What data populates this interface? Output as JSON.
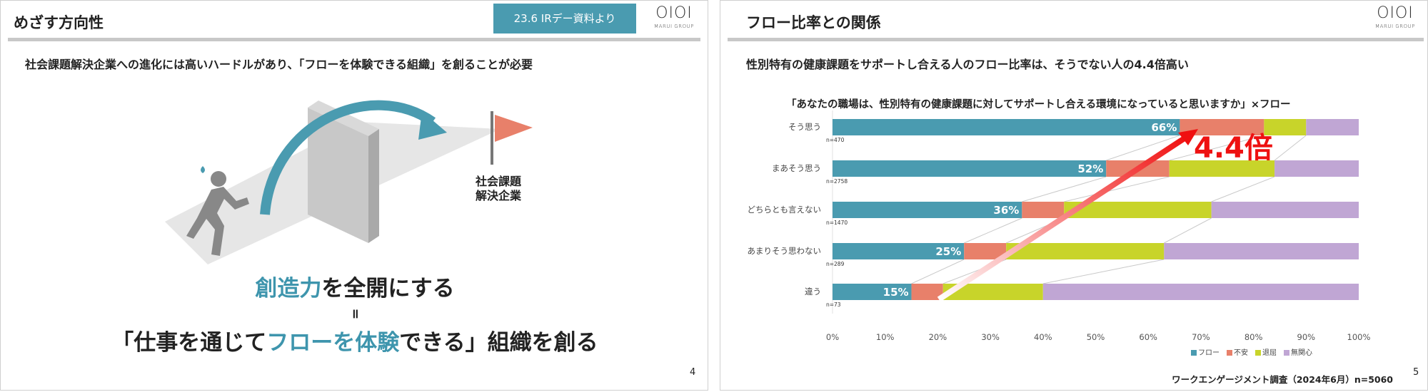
{
  "left": {
    "title": "めざす方向性",
    "badge": "23.6 IRデー資料より",
    "logo": "OIOI",
    "logo_sub": "MARUI GROUP",
    "subtitle": "社会課題解決企業への進化には高いハードルがあり、「フローを体験できる組織」を創ることが必要",
    "goal_line1": "社会課題",
    "goal_line2": "解決企業",
    "line1_accent": "創造力",
    "line1_rest": "を全開にする",
    "equals": "॥",
    "line3_a": "「仕事を通じて",
    "line3_accent": "フローを体験",
    "line3_b": "できる」組織を創る",
    "page_number": "4"
  },
  "right": {
    "title": "フロー比率との関係",
    "logo": "OIOI",
    "logo_sub": "MARUI GROUP",
    "subtitle": "性別特有の健康課題をサポートし合える人のフロー比率は、そうでない人の4.4倍高い",
    "callout": "4.4倍",
    "source": "ワークエンゲージメント調査（2024年6月）n=5060",
    "page_number": "5"
  },
  "chart_data": {
    "type": "bar",
    "stacked": true,
    "orientation": "horizontal",
    "title": "「あなたの職場は、性別特有の健康課題に対してサポートし合える環境になっていると思いますか」×フロー",
    "categories": [
      "そう思う",
      "まあそう思う",
      "どちらとも言えない",
      "あまりそう思わない",
      "違う"
    ],
    "n_labels": [
      "n=470",
      "n=2758",
      "n=1470",
      "n=289",
      "n=73"
    ],
    "series": [
      {
        "name": "フロー",
        "color": "#4a9bb0",
        "values": [
          66,
          52,
          36,
          25,
          15
        ]
      },
      {
        "name": "不安",
        "color": "#e8806a",
        "values": [
          16,
          12,
          8,
          8,
          6
        ]
      },
      {
        "name": "退屈",
        "color": "#c8d42a",
        "values": [
          8,
          20,
          28,
          30,
          19
        ]
      },
      {
        "name": "無関心",
        "color": "#c0a6d4",
        "values": [
          10,
          16,
          28,
          37,
          60
        ]
      }
    ],
    "data_labels": [
      "66%",
      "52%",
      "36%",
      "25%",
      "15%"
    ],
    "xticks": [
      "0%",
      "10%",
      "20%",
      "30%",
      "40%",
      "50%",
      "60%",
      "70%",
      "80%",
      "90%",
      "100%"
    ],
    "xlim": [
      0,
      100
    ],
    "legend": "bottom-right"
  }
}
